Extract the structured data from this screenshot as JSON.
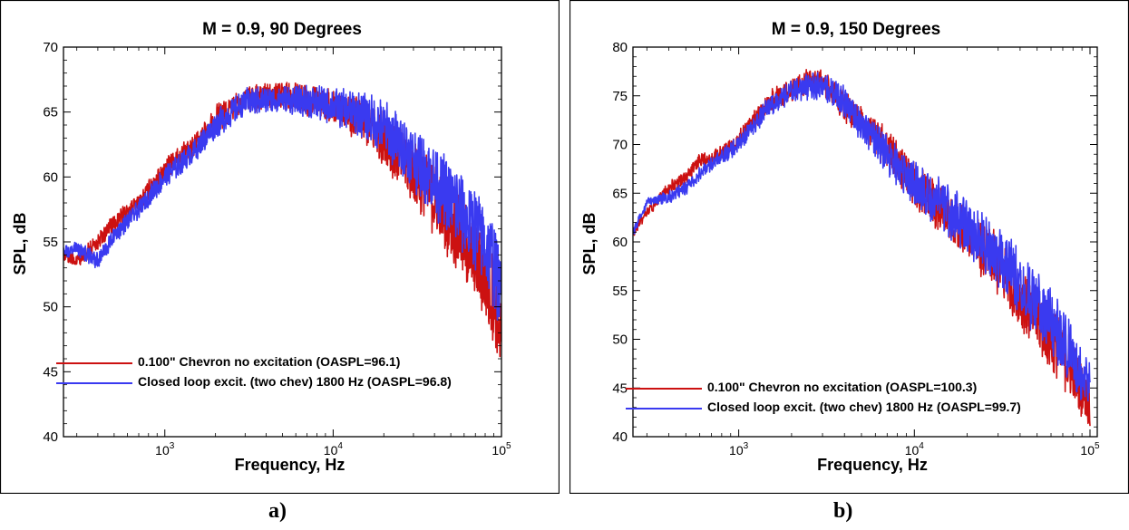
{
  "chart_data": [
    {
      "type": "line",
      "title": "M = 0.9, 90 Degrees",
      "xlabel": "Frequency, Hz",
      "ylabel": "SPL, dB",
      "xscale": "log",
      "xlim": [
        250,
        100000
      ],
      "ylim": [
        40,
        70
      ],
      "yticks": [
        "40",
        "45",
        "50",
        "55",
        "60",
        "65",
        "70"
      ],
      "xticks": [
        {
          "base": "10",
          "exp": "3"
        },
        {
          "base": "10",
          "exp": "4"
        },
        {
          "base": "10",
          "exp": "5"
        }
      ],
      "grid": false,
      "legend_position": "lower-left",
      "series": [
        {
          "name": "0.100\" Chevron no excitation (OASPL=96.1)",
          "color": "#cc1111",
          "x": [
            250,
            300,
            400,
            500,
            700,
            1000,
            1500,
            2000,
            3000,
            5000,
            7000,
            10000,
            15000,
            20000,
            30000,
            40000,
            50000,
            60000,
            70000,
            80000,
            90000,
            100000
          ],
          "y": [
            54.0,
            53.5,
            55.0,
            56.5,
            58.0,
            60.5,
            62.5,
            64.5,
            66.0,
            66.3,
            66.0,
            65.5,
            64.3,
            63.0,
            60.3,
            58.3,
            56.6,
            55.0,
            53.5,
            52.0,
            50.5,
            47.5
          ],
          "spread": [
            0.3,
            0.3,
            0.4,
            0.4,
            0.4,
            0.5,
            0.5,
            0.6,
            0.6,
            0.6,
            0.7,
            0.8,
            1.0,
            1.2,
            1.4,
            1.6,
            1.7,
            1.8,
            1.9,
            2.0,
            2.0,
            1.5
          ]
        },
        {
          "name": "Closed loop excit. (two chev) 1800 Hz (OASPL=96.8)",
          "color": "#3a3af0",
          "x": [
            250,
            300,
            400,
            500,
            700,
            1000,
            1500,
            2000,
            3000,
            5000,
            7000,
            10000,
            15000,
            20000,
            30000,
            40000,
            50000,
            60000,
            70000,
            80000,
            90000,
            100000
          ],
          "y": [
            54.2,
            54.5,
            53.5,
            55.5,
            57.5,
            60.0,
            62.0,
            64.0,
            65.8,
            66.0,
            65.8,
            65.5,
            64.8,
            63.8,
            61.5,
            59.8,
            58.3,
            57.0,
            56.0,
            54.8,
            53.5,
            50.5
          ],
          "spread": [
            0.3,
            0.3,
            0.4,
            0.4,
            0.4,
            0.5,
            0.5,
            0.6,
            0.6,
            0.6,
            0.7,
            0.8,
            1.0,
            1.2,
            1.4,
            1.6,
            1.7,
            1.8,
            1.9,
            2.0,
            2.0,
            1.5
          ]
        }
      ]
    },
    {
      "type": "line",
      "title": "M = 0.9, 150 Degrees",
      "xlabel": "Frequency, Hz",
      "ylabel": "SPL, dB",
      "xscale": "log",
      "xlim": [
        250,
        110000
      ],
      "ylim": [
        40,
        80
      ],
      "yticks": [
        "40",
        "45",
        "50",
        "55",
        "60",
        "65",
        "70",
        "75",
        "80"
      ],
      "xticks": [
        {
          "base": "10",
          "exp": "3"
        },
        {
          "base": "10",
          "exp": "4"
        },
        {
          "base": "10",
          "exp": "5"
        }
      ],
      "grid": false,
      "legend_position": "lower-left",
      "series": [
        {
          "name": "0.100\" Chevron no excitation (OASPL=100.3)",
          "color": "#cc1111",
          "x": [
            250,
            300,
            400,
            500,
            600,
            700,
            1000,
            1500,
            2000,
            2500,
            3000,
            4000,
            5000,
            7000,
            10000,
            15000,
            20000,
            30000,
            40000,
            50000,
            70000,
            100000
          ],
          "y": [
            61.0,
            63.0,
            65.5,
            66.5,
            68.5,
            68.5,
            70.5,
            74.5,
            75.5,
            76.5,
            76.5,
            74.0,
            72.5,
            69.5,
            66.0,
            63.0,
            61.0,
            57.5,
            54.5,
            52.0,
            48.5,
            43.5
          ],
          "spread": [
            0.3,
            0.3,
            0.4,
            0.4,
            0.4,
            0.4,
            0.5,
            0.6,
            0.7,
            0.8,
            0.8,
            0.9,
            1.0,
            1.2,
            1.3,
            1.5,
            1.6,
            1.8,
            1.9,
            2.0,
            2.0,
            1.5
          ]
        },
        {
          "name": "Closed loop excit. (two chev) 1800 Hz (OASPL=99.7)",
          "color": "#3a3af0",
          "x": [
            250,
            300,
            400,
            500,
            600,
            700,
            1000,
            1500,
            2000,
            2500,
            3000,
            4000,
            5000,
            7000,
            10000,
            15000,
            20000,
            30000,
            40000,
            50000,
            70000,
            100000
          ],
          "y": [
            61.0,
            64.0,
            64.5,
            65.5,
            67.0,
            68.0,
            70.0,
            74.0,
            75.5,
            76.0,
            76.0,
            74.5,
            72.0,
            69.0,
            66.0,
            63.5,
            61.5,
            58.5,
            56.0,
            53.5,
            50.0,
            45.0
          ],
          "spread": [
            0.3,
            0.3,
            0.4,
            0.4,
            0.4,
            0.4,
            0.5,
            0.6,
            0.7,
            0.8,
            0.8,
            0.9,
            1.0,
            1.2,
            1.3,
            1.5,
            1.6,
            1.8,
            1.9,
            2.0,
            2.0,
            1.5
          ]
        }
      ]
    }
  ],
  "captions": [
    "a)",
    "b)"
  ]
}
